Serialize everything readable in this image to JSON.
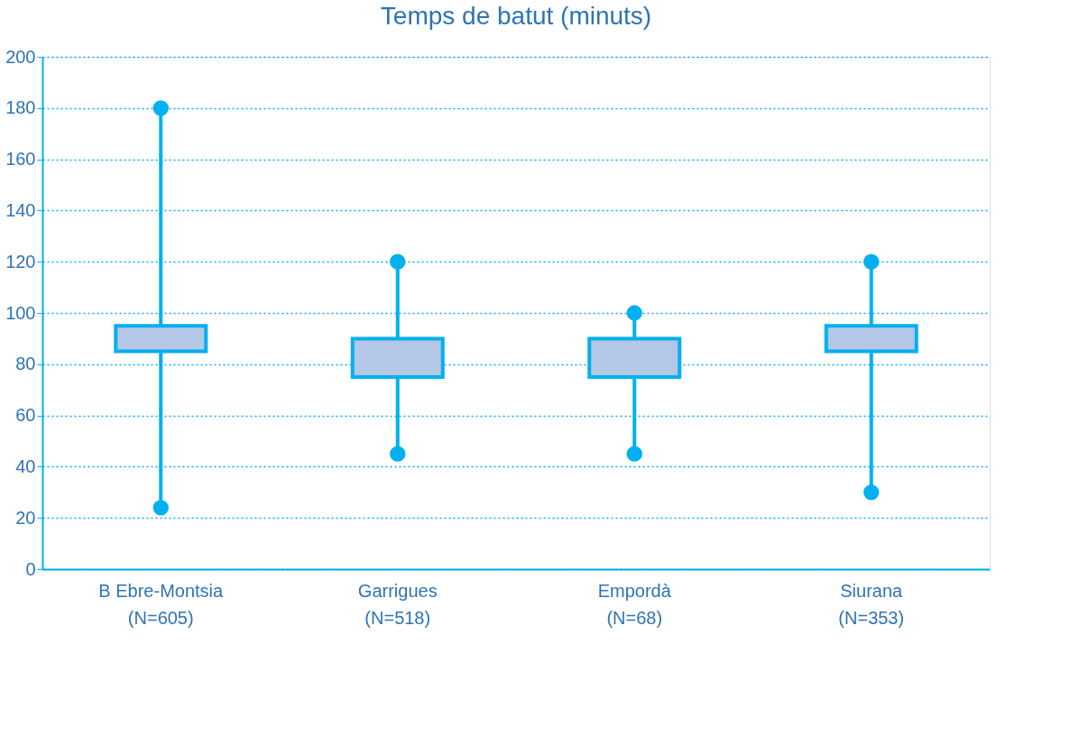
{
  "chart_data": {
    "type": "candlestick",
    "title": "Temps de batut (minuts)",
    "categories": [
      "B Ebre-Montsia\n(N=605)",
      "Garrigues\n(N=518)",
      "Empordà\n(N=68)",
      "Siurana\n(N=353)"
    ],
    "ohlc": [
      [
        85,
        180,
        24,
        95
      ],
      [
        75,
        120,
        45,
        90
      ],
      [
        75,
        100,
        45,
        90
      ],
      [
        85,
        120,
        30,
        95
      ]
    ],
    "color": "#00b0f0",
    "series": [
      {
        "type": "scatter",
        "color": "#00b0f0",
        "x": [
          "B Ebre-Montsia\n(N=605)",
          "Garrigues\n(N=518)",
          "Empordà\n(N=68)",
          "Siurana\n(N=353)"
        ],
        "values": [
          180,
          120,
          100,
          120
        ]
      },
      {
        "type": "scatter",
        "color": "#00b0f0",
        "x": [
          "B Ebre-Montsia\n(N=605)",
          "Garrigues\n(N=518)",
          "Empordà\n(N=68)",
          "Siurana\n(N=353)"
        ],
        "values": [
          24,
          45,
          45,
          30
        ]
      }
    ],
    "marker": "circle",
    "ylim": [
      0,
      200
    ],
    "yticks": [
      0,
      20,
      40,
      60,
      80,
      100,
      120,
      140,
      160,
      180,
      200
    ],
    "grid": "y"
  }
}
